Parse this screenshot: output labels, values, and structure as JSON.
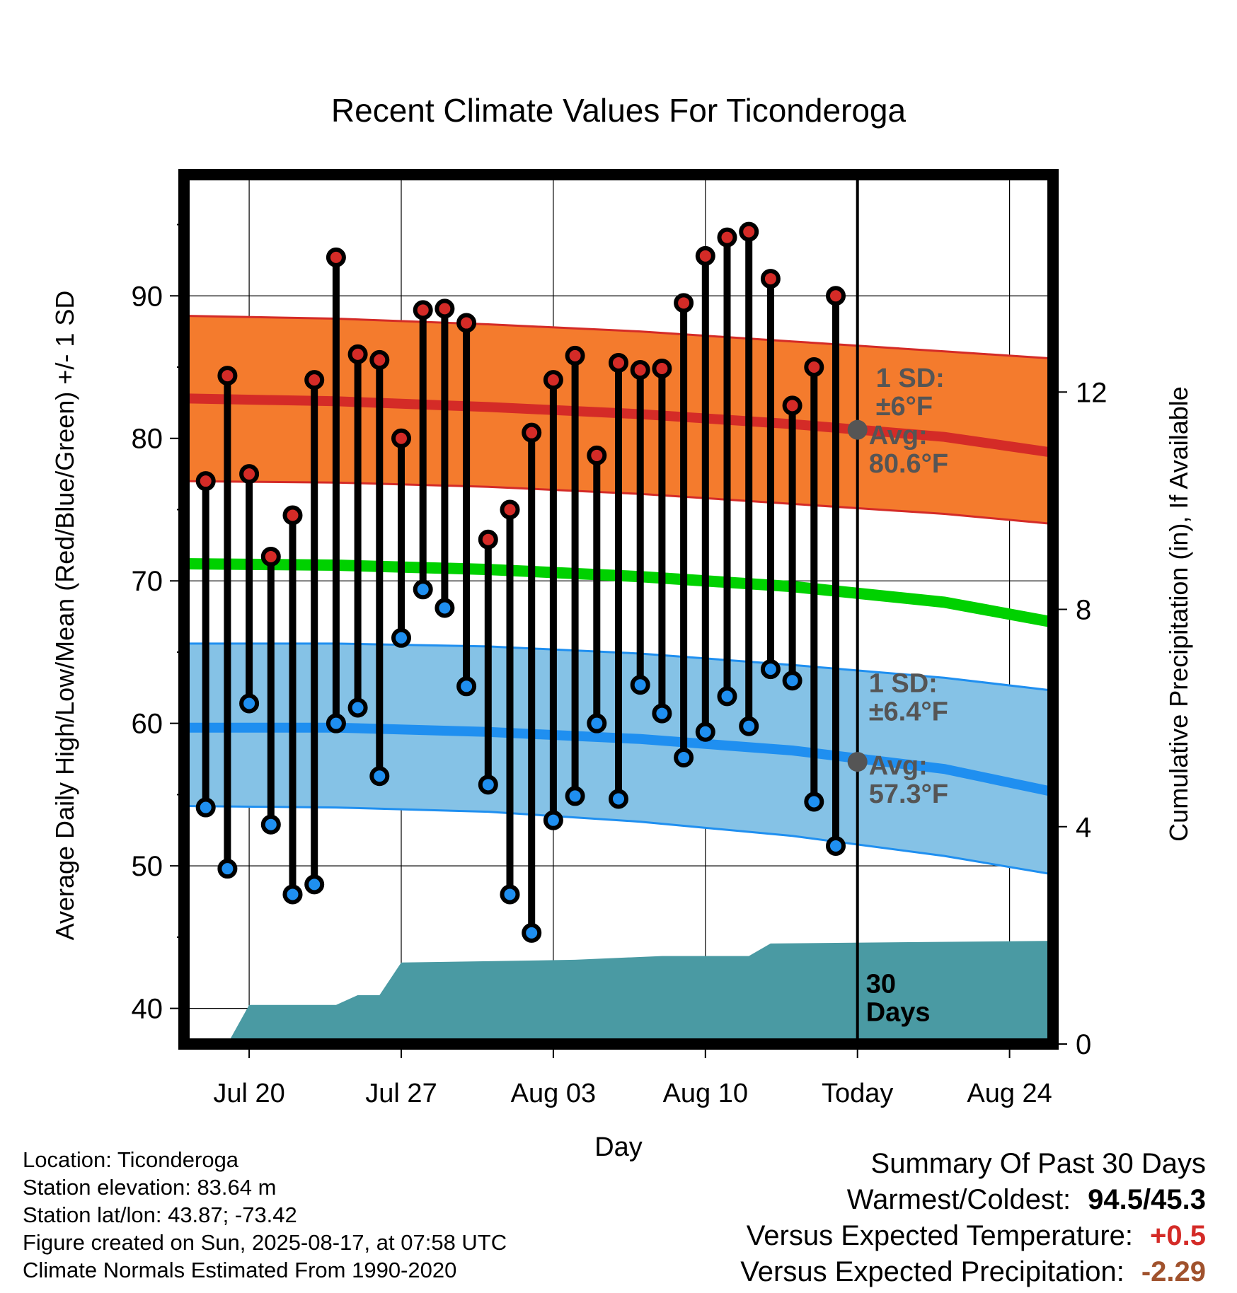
{
  "chart_data": {
    "type": "line",
    "title": "Recent Climate Values For Ticonderoga",
    "xlabel": "Day",
    "ylabel": "Average Daily High/Low/Mean (Red/Blue/Green) +/- 1 SD",
    "y2label": "Cumulative Precipitation (in), If Available",
    "ylim": [
      37.5,
      98.5
    ],
    "y2lim": [
      0,
      16
    ],
    "yticks": [
      40,
      50,
      60,
      70,
      80,
      90
    ],
    "y2ticks": [
      0,
      4,
      8,
      12
    ],
    "xlim": [
      "2025-07-17",
      "2025-08-26"
    ],
    "xticks": [
      {
        "date": "2025-07-20",
        "label": "Jul 20"
      },
      {
        "date": "2025-07-27",
        "label": "Jul 27"
      },
      {
        "date": "2025-08-03",
        "label": "Aug 03"
      },
      {
        "date": "2025-08-10",
        "label": "Aug 10"
      },
      {
        "date": "2025-08-17",
        "label": "Today"
      },
      {
        "date": "2025-08-24",
        "label": "Aug 24"
      }
    ],
    "today": "2025-08-17",
    "grid": true,
    "normal_high": {
      "x": [
        "2025-07-17",
        "2025-07-24",
        "2025-07-31",
        "2025-08-07",
        "2025-08-14",
        "2025-08-21",
        "2025-08-26"
      ],
      "mean": [
        82.8,
        82.6,
        82.2,
        81.7,
        81.0,
        80.1,
        79.0
      ],
      "upper": [
        88.6,
        88.4,
        88.0,
        87.5,
        86.8,
        86.1,
        85.6
      ],
      "lower": [
        77.0,
        76.9,
        76.6,
        76.1,
        75.4,
        74.7,
        74.0
      ]
    },
    "normal_low": {
      "x": [
        "2025-07-17",
        "2025-07-24",
        "2025-07-31",
        "2025-08-07",
        "2025-08-14",
        "2025-08-21",
        "2025-08-26"
      ],
      "mean": [
        59.7,
        59.7,
        59.4,
        58.9,
        58.1,
        56.8,
        55.2
      ],
      "upper": [
        65.6,
        65.6,
        65.4,
        64.9,
        64.1,
        63.2,
        62.3
      ],
      "lower": [
        54.2,
        54.1,
        53.8,
        53.1,
        52.1,
        50.7,
        49.4
      ]
    },
    "normal_mean": {
      "x": [
        "2025-07-17",
        "2025-07-24",
        "2025-07-31",
        "2025-08-07",
        "2025-08-14",
        "2025-08-21",
        "2025-08-26"
      ],
      "values": [
        71.2,
        71.1,
        70.8,
        70.3,
        69.6,
        68.5,
        67.1
      ]
    },
    "observed": {
      "dates": [
        "2025-07-18",
        "2025-07-19",
        "2025-07-20",
        "2025-07-21",
        "2025-07-22",
        "2025-07-23",
        "2025-07-24",
        "2025-07-25",
        "2025-07-26",
        "2025-07-27",
        "2025-07-28",
        "2025-07-29",
        "2025-07-30",
        "2025-07-31",
        "2025-08-01",
        "2025-08-02",
        "2025-08-03",
        "2025-08-04",
        "2025-08-05",
        "2025-08-06",
        "2025-08-07",
        "2025-08-08",
        "2025-08-09",
        "2025-08-10",
        "2025-08-11",
        "2025-08-12",
        "2025-08-13",
        "2025-08-14",
        "2025-08-15",
        "2025-08-16"
      ],
      "high": [
        77.0,
        84.4,
        77.5,
        71.7,
        74.6,
        84.1,
        92.7,
        85.9,
        85.5,
        80.0,
        89.0,
        89.1,
        88.1,
        72.9,
        75.0,
        80.4,
        84.1,
        85.8,
        78.8,
        85.3,
        84.8,
        84.9,
        89.5,
        92.8,
        94.1,
        94.5,
        91.2,
        82.3,
        85.0,
        90.0
      ],
      "low": [
        54.1,
        49.8,
        61.4,
        52.9,
        48.0,
        48.7,
        60.0,
        61.1,
        56.3,
        66.0,
        69.4,
        68.1,
        62.6,
        55.7,
        48.0,
        45.3,
        53.2,
        54.9,
        60.0,
        54.7,
        62.7,
        60.7,
        57.6,
        59.4,
        61.9,
        59.8,
        63.8,
        63.0,
        54.5,
        51.4
      ]
    },
    "precip_cumulative": {
      "x": [
        "2025-07-17",
        "2025-07-18",
        "2025-07-19",
        "2025-07-20",
        "2025-07-24",
        "2025-07-25",
        "2025-07-26",
        "2025-07-27",
        "2025-08-04",
        "2025-08-08",
        "2025-08-12",
        "2025-08-13",
        "2025-08-26"
      ],
      "values": [
        0,
        0,
        0,
        0.72,
        0.72,
        0.9,
        0.9,
        1.5,
        1.55,
        1.62,
        1.62,
        1.85,
        1.9
      ]
    },
    "annotations": {
      "high_sd": [
        "1 SD:",
        "±6°F"
      ],
      "high_avg": [
        "Avg:",
        "80.6°F"
      ],
      "low_sd": [
        "1 SD:",
        "±6.4°F"
      ],
      "low_avg": [
        "Avg:",
        "57.3°F"
      ],
      "days": [
        "30",
        "Days"
      ],
      "today_high_avg": 80.6,
      "today_low_avg": 57.3
    },
    "colors": {
      "high_band": "#f47b2d",
      "high_line": "#d42b27",
      "low_band": "#85c2e6",
      "low_line": "#1f8ff0",
      "mean_line": "#00d100",
      "precip": "#4a9aa3",
      "high_dot": "#d42b27",
      "low_dot": "#1f8ff0",
      "annotation": "#555555"
    }
  },
  "info": {
    "location": "Location: Ticonderoga",
    "elevation": "Station elevation: 83.64 m",
    "latlon": "Station lat/lon: 43.87; -73.42",
    "created": "Figure created on Sun, 2025-08-17, at 07:58 UTC",
    "normals": "Climate Normals Estimated From 1990-2020"
  },
  "summary": {
    "title": "Summary Of Past 30 Days",
    "warmest_label": "Warmest/Coldest:",
    "warmest_value": "94.5/45.3",
    "temp_label": "Versus Expected Temperature:",
    "temp_value": "+0.5",
    "temp_color": "#d42b27",
    "precip_label": "Versus Expected Precipitation:",
    "precip_value": "-2.29",
    "precip_color": "#a0522d"
  }
}
